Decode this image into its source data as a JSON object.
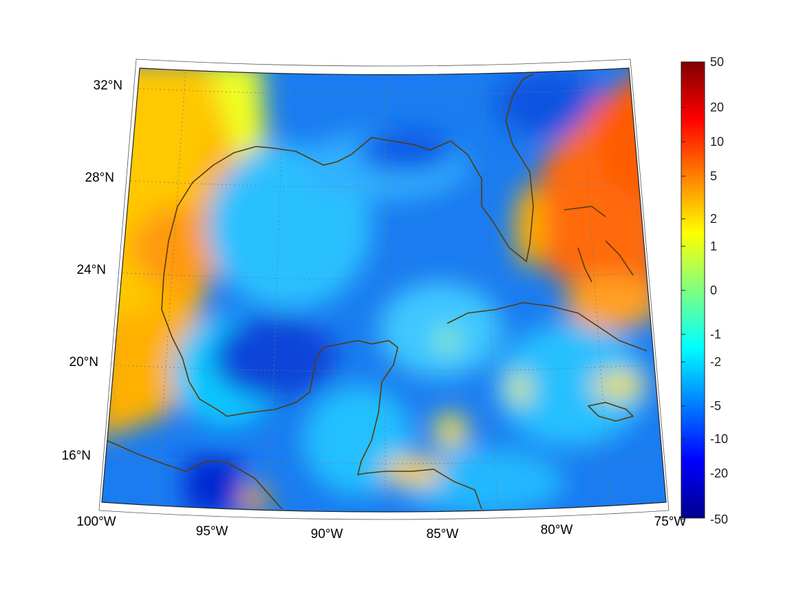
{
  "map": {
    "projection": "lambert-conic",
    "colormap": "jet",
    "grid": true,
    "coastline_color": "#5a3a0a",
    "lat_labels": [
      "32°N",
      "28°N",
      "24°N",
      "20°N",
      "16°N"
    ],
    "lon_labels": [
      "100°W",
      "95°W",
      "90°W",
      "85°W",
      "80°W",
      "75°W"
    ]
  },
  "colorbar": {
    "tick_labels": [
      "50",
      "20",
      "10",
      "5",
      "2",
      "1",
      "0",
      "-1",
      "-2",
      "-5",
      "-10",
      "-20",
      "-50"
    ]
  }
}
